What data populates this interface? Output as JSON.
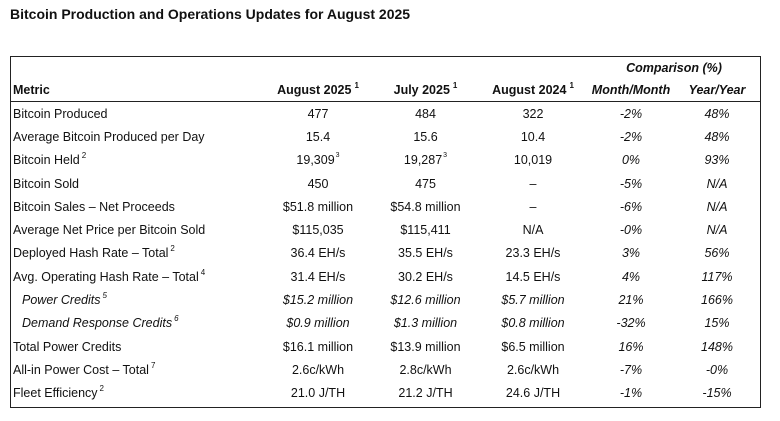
{
  "title": "Bitcoin Production and Operations Updates for August 2025",
  "comparison_header": "Comparison (%)",
  "columns": [
    {
      "label": "Metric",
      "sup": ""
    },
    {
      "label": "August 2025",
      "sup": "1"
    },
    {
      "label": "July 2025",
      "sup": "1"
    },
    {
      "label": "August 2024",
      "sup": "1"
    },
    {
      "label": "Month/Month",
      "sup": ""
    },
    {
      "label": "Year/Year",
      "sup": ""
    }
  ],
  "rows": [
    {
      "metric": "Bitcoin Produced",
      "sup": "",
      "sub": false,
      "aug2025": "477",
      "aug2025_sup": "",
      "jul2025": "484",
      "jul2025_sup": "",
      "aug2024": "322",
      "mom": "-2%",
      "yoy": "48%"
    },
    {
      "metric": "Average Bitcoin Produced per Day",
      "sup": "",
      "sub": false,
      "aug2025": "15.4",
      "aug2025_sup": "",
      "jul2025": "15.6",
      "jul2025_sup": "",
      "aug2024": "10.4",
      "mom": "-2%",
      "yoy": "48%"
    },
    {
      "metric": "Bitcoin Held",
      "sup": "2",
      "sub": false,
      "aug2025": "19,309",
      "aug2025_sup": "3",
      "jul2025": "19,287",
      "jul2025_sup": "3",
      "aug2024": "10,019",
      "mom": "0%",
      "yoy": "93%"
    },
    {
      "metric": "Bitcoin Sold",
      "sup": "",
      "sub": false,
      "aug2025": "450",
      "aug2025_sup": "",
      "jul2025": "475",
      "jul2025_sup": "",
      "aug2024": "–",
      "mom": "-5%",
      "yoy": "N/A"
    },
    {
      "metric": "Bitcoin Sales – Net Proceeds",
      "sup": "",
      "sub": false,
      "aug2025": "$51.8 million",
      "aug2025_sup": "",
      "jul2025": "$54.8 million",
      "jul2025_sup": "",
      "aug2024": "–",
      "mom": "-6%",
      "yoy": "N/A"
    },
    {
      "metric": "Average Net Price per Bitcoin Sold",
      "sup": "",
      "sub": false,
      "aug2025": "$115,035",
      "aug2025_sup": "",
      "jul2025": "$115,411",
      "jul2025_sup": "",
      "aug2024": "N/A",
      "mom": "-0%",
      "yoy": "N/A"
    },
    {
      "metric": "Deployed Hash Rate – Total",
      "sup": "2",
      "sub": false,
      "aug2025": "36.4 EH/s",
      "aug2025_sup": "",
      "jul2025": "35.5 EH/s",
      "jul2025_sup": "",
      "aug2024": "23.3 EH/s",
      "mom": "3%",
      "yoy": "56%"
    },
    {
      "metric": "Avg. Operating Hash Rate – Total",
      "sup": "4",
      "sub": false,
      "aug2025": "31.4 EH/s",
      "aug2025_sup": "",
      "jul2025": "30.2 EH/s",
      "jul2025_sup": "",
      "aug2024": "14.5 EH/s",
      "mom": "4%",
      "yoy": "117%"
    },
    {
      "metric": "Power Credits",
      "sup": "5",
      "sub": true,
      "aug2025": "$15.2 million",
      "aug2025_sup": "",
      "jul2025": "$12.6 million",
      "jul2025_sup": "",
      "aug2024": "$5.7 million",
      "mom": "21%",
      "yoy": "166%"
    },
    {
      "metric": "Demand Response Credits",
      "sup": "6",
      "sub": true,
      "aug2025": "$0.9 million",
      "aug2025_sup": "",
      "jul2025": "$1.3 million",
      "jul2025_sup": "",
      "aug2024": "$0.8 million",
      "mom": "-32%",
      "yoy": "15%"
    },
    {
      "metric": "Total Power Credits",
      "sup": "",
      "sub": false,
      "aug2025": "$16.1 million",
      "aug2025_sup": "",
      "jul2025": "$13.9 million",
      "jul2025_sup": "",
      "aug2024": "$6.5 million",
      "mom": "16%",
      "yoy": "148%"
    },
    {
      "metric": "All-in Power Cost – Total",
      "sup": "7",
      "sub": false,
      "aug2025": "2.6c/kWh",
      "aug2025_sup": "",
      "jul2025": "2.8c/kWh",
      "jul2025_sup": "",
      "aug2024": "2.6c/kWh",
      "mom": "-7%",
      "yoy": "-0%"
    },
    {
      "metric": "Fleet Efficiency",
      "sup": "2",
      "sub": false,
      "aug2025": "21.0 J/TH",
      "aug2025_sup": "",
      "jul2025": "21.2 J/TH",
      "jul2025_sup": "",
      "aug2024": "24.6 J/TH",
      "mom": "-1%",
      "yoy": "-15%"
    }
  ]
}
